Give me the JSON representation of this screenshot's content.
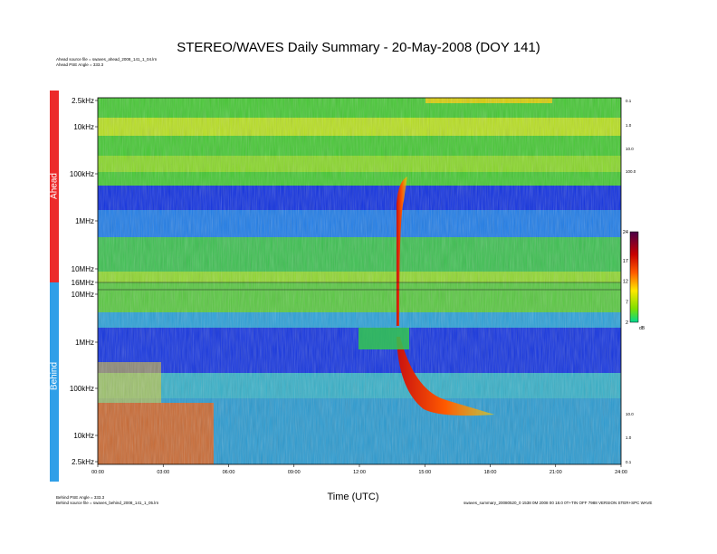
{
  "chart_data": {
    "type": "heatmap",
    "title": "STEREO/WAVES Daily Summary - 20-May-2008 (DOY 141)",
    "xlabel": "Time (UTC)",
    "x_ticks": [
      "00:00",
      "03:00",
      "06:00",
      "09:00",
      "12:00",
      "15:00",
      "18:00",
      "21:00",
      "24:00"
    ],
    "xlim_hours": [
      0,
      24
    ],
    "panels": [
      {
        "name": "Ahead",
        "freq_ticks": [
          "2.5kHz",
          "10kHz",
          "100kHz",
          "1MHz",
          "10MHz",
          "16MHz"
        ],
        "right_ticks": [
          "0.1",
          "1.0",
          "10.0",
          "100.0"
        ],
        "color": "#ec2a2a"
      },
      {
        "name": "Behind",
        "freq_ticks": [
          "16MHz",
          "10MHz",
          "1MHz",
          "100kHz",
          "10kHz",
          "2.5kHz"
        ],
        "right_ticks": [
          "10.0",
          "1.0",
          "0.1"
        ],
        "color": "#2f9fe8"
      }
    ],
    "colorbar": {
      "ticks": [
        "2",
        "7",
        "12",
        "17",
        "24"
      ],
      "range": [
        2,
        24
      ],
      "unit": "dB"
    },
    "burst": {
      "type": "type III radio burst",
      "start_hour": 13.7,
      "duration_hours": 4.5
    }
  },
  "meta": {
    "ahead_source": "Ahead source file = swaves_ahead_2008_141_1_04.lrn",
    "ahead_pse": "Ahead PSE Angle = 333.3",
    "behind_pse": "Behind PSE Angle = 333.3",
    "behind_source": "Behind source file = swaves_behind_2008_141_1_05.lrn",
    "footer_id": "swaves_summary_20080520_0 1538 0M 2008 00 18.0 0T+TIN OFF 7988 VERSION STER+SPC WAVE"
  }
}
